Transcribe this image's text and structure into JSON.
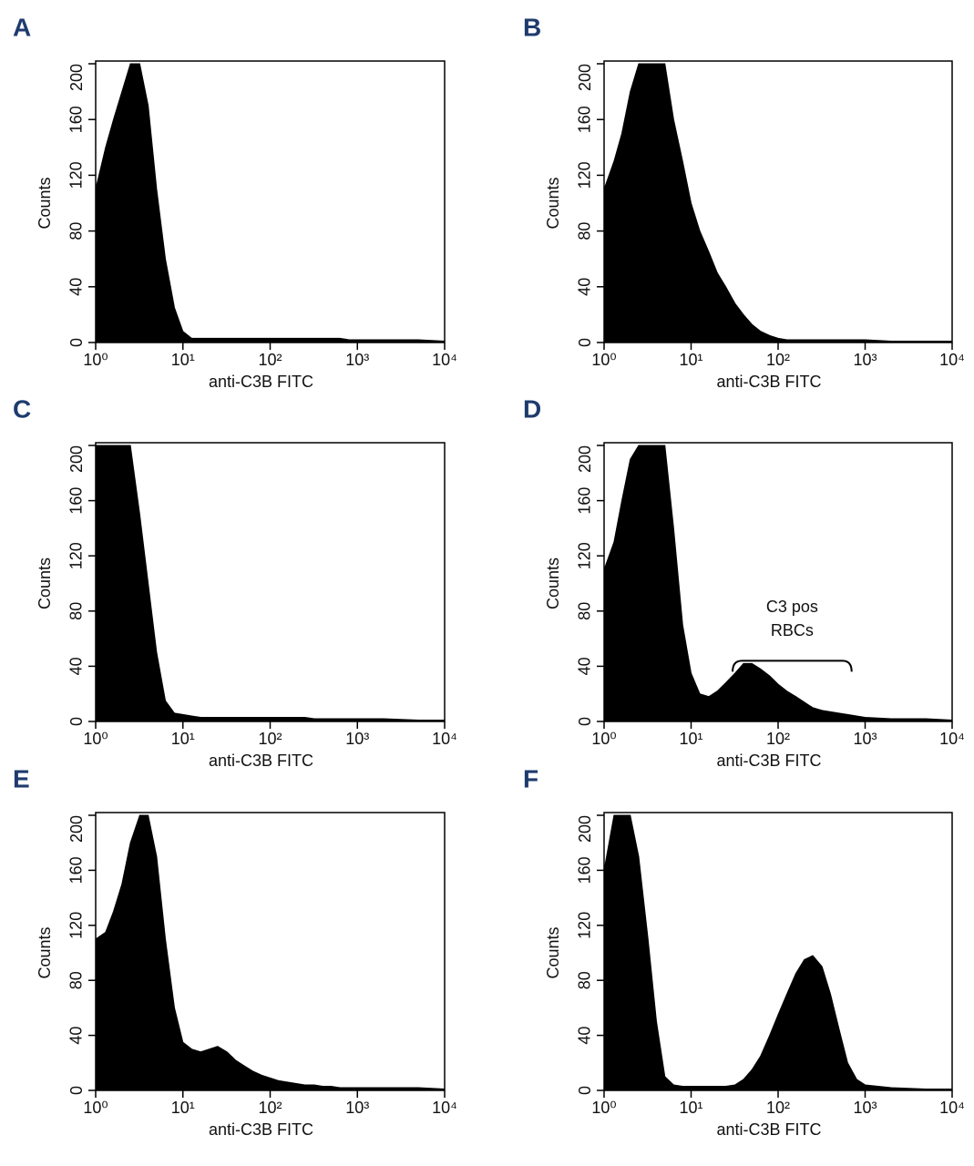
{
  "chart_data": [
    {
      "type": "area",
      "panel": "A",
      "xlabel": "anti-C3B FITC",
      "ylabel": "Counts",
      "color": "#000000",
      "xscale": "log",
      "xlim": [
        1,
        10000
      ],
      "xticks": [
        {
          "value": 1,
          "label": "10⁰"
        },
        {
          "value": 10,
          "label": "10¹"
        },
        {
          "value": 100,
          "label": "10²"
        },
        {
          "value": 1000,
          "label": "10³"
        },
        {
          "value": 10000,
          "label": "10⁴"
        }
      ],
      "ylim": [
        0,
        200
      ],
      "yticks": [
        0,
        40,
        80,
        120,
        160,
        200
      ],
      "x": [
        1,
        1.3,
        1.6,
        2,
        2.5,
        3.2,
        4,
        5,
        6.3,
        8,
        10,
        12.6,
        16,
        20,
        25,
        32,
        40,
        50,
        63,
        80,
        100,
        126,
        160,
        200,
        250,
        320,
        400,
        500,
        630,
        800,
        1000,
        2000,
        5000,
        10000
      ],
      "values": [
        110,
        140,
        160,
        180,
        200,
        200,
        170,
        110,
        60,
        25,
        8,
        3,
        3,
        3,
        3,
        3,
        3,
        3,
        3,
        3,
        3,
        3,
        3,
        3,
        3,
        3,
        3,
        3,
        3,
        2,
        2,
        2,
        2,
        1
      ]
    },
    {
      "type": "area",
      "panel": "B",
      "xlabel": "anti-C3B FITC",
      "ylabel": "Counts",
      "color": "#000000",
      "xscale": "log",
      "xlim": [
        1,
        10000
      ],
      "xticks": [
        {
          "value": 1,
          "label": "10⁰"
        },
        {
          "value": 10,
          "label": "10¹"
        },
        {
          "value": 100,
          "label": "10²"
        },
        {
          "value": 1000,
          "label": "10³"
        },
        {
          "value": 10000,
          "label": "10⁴"
        }
      ],
      "ylim": [
        0,
        200
      ],
      "yticks": [
        0,
        40,
        80,
        120,
        160,
        200
      ],
      "x": [
        1,
        1.3,
        1.6,
        2,
        2.5,
        3.2,
        4,
        5,
        6.3,
        8,
        10,
        12.6,
        16,
        20,
        25,
        32,
        40,
        50,
        63,
        80,
        100,
        126,
        160,
        200,
        250,
        320,
        400,
        500,
        630,
        800,
        1000,
        2000,
        5000,
        10000
      ],
      "values": [
        110,
        130,
        150,
        180,
        200,
        200,
        200,
        200,
        160,
        130,
        100,
        80,
        65,
        50,
        40,
        28,
        20,
        13,
        8,
        5,
        3,
        2,
        2,
        2,
        2,
        2,
        2,
        2,
        2,
        2,
        2,
        1,
        1,
        1
      ]
    },
    {
      "type": "area",
      "panel": "C",
      "xlabel": "anti-C3B FITC",
      "ylabel": "Counts",
      "color": "#000000",
      "xscale": "log",
      "xlim": [
        1,
        10000
      ],
      "xticks": [
        {
          "value": 1,
          "label": "10⁰"
        },
        {
          "value": 10,
          "label": "10¹"
        },
        {
          "value": 100,
          "label": "10²"
        },
        {
          "value": 1000,
          "label": "10³"
        },
        {
          "value": 10000,
          "label": "10⁴"
        }
      ],
      "ylim": [
        0,
        200
      ],
      "yticks": [
        0,
        40,
        80,
        120,
        160,
        200
      ],
      "x": [
        1,
        1.3,
        1.6,
        2,
        2.5,
        3.2,
        4,
        5,
        6.3,
        8,
        10,
        12.6,
        16,
        20,
        25,
        32,
        40,
        50,
        63,
        80,
        100,
        126,
        160,
        200,
        250,
        320,
        400,
        500,
        630,
        800,
        1000,
        2000,
        5000,
        10000
      ],
      "values": [
        200,
        200,
        200,
        200,
        200,
        150,
        100,
        50,
        15,
        6,
        5,
        4,
        3,
        3,
        3,
        3,
        3,
        3,
        3,
        3,
        3,
        3,
        3,
        3,
        3,
        2,
        2,
        2,
        2,
        2,
        2,
        2,
        1,
        1
      ]
    },
    {
      "type": "area",
      "panel": "D",
      "xlabel": "anti-C3B FITC",
      "ylabel": "Counts",
      "color": "#000000",
      "xscale": "log",
      "xlim": [
        1,
        10000
      ],
      "xticks": [
        {
          "value": 1,
          "label": "10⁰"
        },
        {
          "value": 10,
          "label": "10¹"
        },
        {
          "value": 100,
          "label": "10²"
        },
        {
          "value": 1000,
          "label": "10³"
        },
        {
          "value": 10000,
          "label": "10⁴"
        }
      ],
      "ylim": [
        0,
        200
      ],
      "yticks": [
        0,
        40,
        80,
        120,
        160,
        200
      ],
      "x": [
        1,
        1.3,
        1.6,
        2,
        2.5,
        3.2,
        4,
        5,
        6.3,
        8,
        10,
        12.6,
        16,
        20,
        25,
        32,
        40,
        50,
        63,
        80,
        100,
        126,
        160,
        200,
        250,
        320,
        400,
        500,
        630,
        800,
        1000,
        2000,
        5000,
        10000
      ],
      "values": [
        110,
        130,
        160,
        190,
        200,
        200,
        200,
        200,
        140,
        70,
        35,
        20,
        18,
        22,
        28,
        35,
        42,
        42,
        38,
        33,
        27,
        22,
        18,
        14,
        10,
        8,
        7,
        6,
        5,
        4,
        3,
        2,
        2,
        1
      ],
      "annotation": {
        "lines": [
          "C3 pos",
          "RBCs"
        ],
        "bracket": [
          30,
          700
        ]
      }
    },
    {
      "type": "area",
      "panel": "E",
      "xlabel": "anti-C3B FITC",
      "ylabel": "Counts",
      "color": "#000000",
      "xscale": "log",
      "xlim": [
        1,
        10000
      ],
      "xticks": [
        {
          "value": 1,
          "label": "10⁰"
        },
        {
          "value": 10,
          "label": "10¹"
        },
        {
          "value": 100,
          "label": "10²"
        },
        {
          "value": 1000,
          "label": "10³"
        },
        {
          "value": 10000,
          "label": "10⁴"
        }
      ],
      "ylim": [
        0,
        200
      ],
      "yticks": [
        0,
        40,
        80,
        120,
        160,
        200
      ],
      "x": [
        1,
        1.3,
        1.6,
        2,
        2.5,
        3.2,
        4,
        5,
        6.3,
        8,
        10,
        12.6,
        16,
        20,
        25,
        32,
        40,
        50,
        63,
        80,
        100,
        126,
        160,
        200,
        250,
        320,
        400,
        500,
        630,
        800,
        1000,
        2000,
        5000,
        10000
      ],
      "values": [
        110,
        115,
        130,
        150,
        180,
        200,
        200,
        170,
        110,
        60,
        35,
        30,
        28,
        30,
        32,
        28,
        22,
        18,
        14,
        11,
        9,
        7,
        6,
        5,
        4,
        4,
        3,
        3,
        2,
        2,
        2,
        2,
        2,
        1
      ]
    },
    {
      "type": "area",
      "panel": "F",
      "xlabel": "anti-C3B FITC",
      "ylabel": "Counts",
      "color": "#000000",
      "xscale": "log",
      "xlim": [
        1,
        10000
      ],
      "xticks": [
        {
          "value": 1,
          "label": "10⁰"
        },
        {
          "value": 10,
          "label": "10¹"
        },
        {
          "value": 100,
          "label": "10²"
        },
        {
          "value": 1000,
          "label": "10³"
        },
        {
          "value": 10000,
          "label": "10⁴"
        }
      ],
      "ylim": [
        0,
        200
      ],
      "yticks": [
        0,
        40,
        80,
        120,
        160,
        200
      ],
      "x": [
        1,
        1.3,
        1.6,
        2,
        2.5,
        3.2,
        4,
        5,
        6.3,
        8,
        10,
        12.6,
        16,
        20,
        25,
        32,
        40,
        50,
        63,
        80,
        100,
        126,
        160,
        200,
        250,
        320,
        400,
        500,
        630,
        800,
        1000,
        2000,
        5000,
        10000
      ],
      "values": [
        160,
        200,
        200,
        200,
        170,
        110,
        50,
        10,
        4,
        3,
        3,
        3,
        3,
        3,
        3,
        4,
        8,
        15,
        25,
        40,
        55,
        70,
        85,
        95,
        98,
        90,
        70,
        45,
        20,
        8,
        4,
        2,
        1,
        1
      ]
    }
  ]
}
